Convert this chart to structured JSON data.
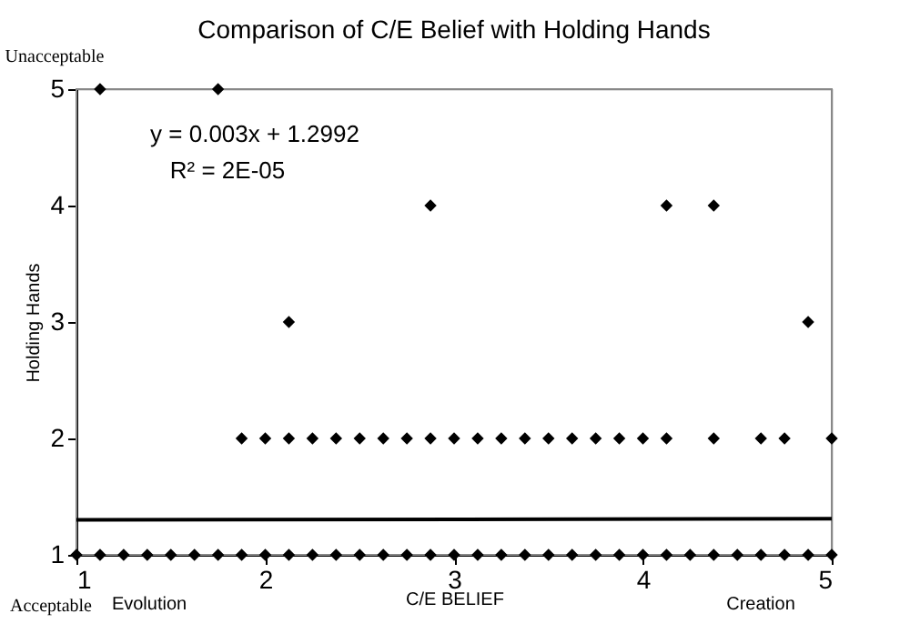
{
  "chart_data": {
    "type": "scatter",
    "title": "Comparison of C/E Belief with Holding Hands",
    "xlabel": "C/E BELIEF",
    "ylabel": "Holding Hands",
    "xlim": [
      1,
      5
    ],
    "xticks": [
      1,
      2,
      3,
      4,
      5
    ],
    "ylim": [
      1,
      5
    ],
    "yticks": [
      1,
      2,
      3,
      4,
      5
    ],
    "grid": false,
    "marker": "diamond",
    "series": [
      {
        "color": "#000000",
        "x": [
          1.125,
          1.75,
          2.875,
          4.125,
          4.375,
          2.125,
          4.875,
          1.875,
          2,
          2.125,
          2.25,
          2.375,
          2.5,
          2.625,
          2.75,
          2.875,
          3,
          3.125,
          3.25,
          3.375,
          3.5,
          3.625,
          3.75,
          3.875,
          4,
          4.125,
          4.375,
          4.625,
          4.75,
          5,
          1,
          1.125,
          1.25,
          1.375,
          1.5,
          1.625,
          1.75,
          1.875,
          2,
          2.125,
          2.25,
          2.375,
          2.5,
          2.625,
          2.75,
          2.875,
          3,
          3.125,
          3.25,
          3.375,
          3.5,
          3.625,
          3.75,
          3.875,
          4,
          4.125,
          4.25,
          4.375,
          4.5,
          4.625,
          4.75,
          4.875,
          5
        ],
        "values": [
          5,
          5,
          4,
          4,
          4,
          3,
          3,
          2,
          2,
          2,
          2,
          2,
          2,
          2,
          2,
          2,
          2,
          2,
          2,
          2,
          2,
          2,
          2,
          2,
          2,
          2,
          2,
          2,
          2,
          2,
          1,
          1,
          1,
          1,
          1,
          1,
          1,
          1,
          1,
          1,
          1,
          1,
          1,
          1,
          1,
          1,
          1,
          1,
          1,
          1,
          1,
          1,
          1,
          1,
          1,
          1,
          1,
          1,
          1,
          1,
          1,
          1,
          1
        ]
      },
      {
        "type": "line",
        "color": "#000000",
        "x": [
          1,
          5
        ],
        "values": [
          1.3,
          1.31
        ],
        "marker": "none"
      }
    ],
    "annotations": [
      "y = 0.003x + 1.2992",
      "R² = 2E-05",
      "Unacceptable",
      "Acceptable",
      "Evolution",
      "Creation"
    ]
  }
}
